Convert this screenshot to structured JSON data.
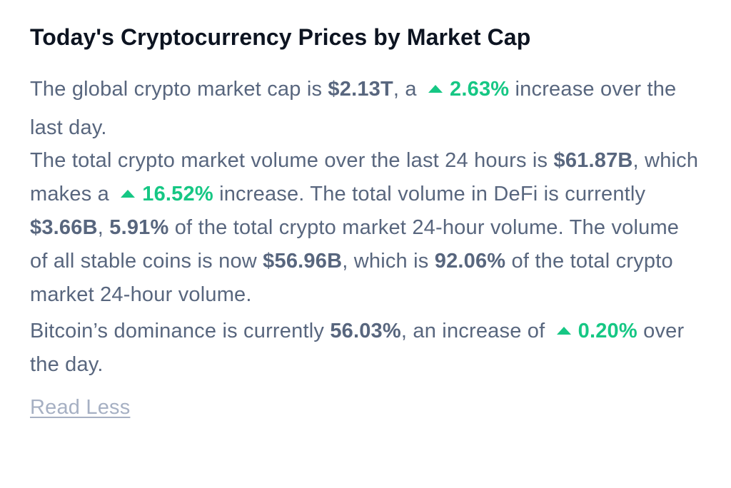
{
  "title": "Today's Cryptocurrency Prices by Market Cap",
  "p1": {
    "t1": "The global crypto market cap is ",
    "cap": "$2.13T",
    "t2": ", a",
    "change": "2.63%",
    "t3": " increase over the last day."
  },
  "p2": {
    "t1": "The total crypto market volume over the last 24 hours is ",
    "volume": "$61.87B",
    "t2": ", which makes a",
    "volume_change": "16.52%",
    "t3": " increase. The total volume in DeFi is currently ",
    "defi_volume": "$3.66B",
    "t4": ", ",
    "defi_share": "5.91%",
    "t5": " of the total crypto market 24-hour volume. The volume of all stable coins is now ",
    "stable_volume": "$56.96B",
    "t6": ", which is ",
    "stable_share": "92.06%",
    "t7": " of the total crypto market 24-hour volume."
  },
  "p3": {
    "t1": "Bitcoin’s dominance is currently ",
    "dominance": "56.03%",
    "t2": ", an increase of",
    "dominance_change": "0.20%",
    "t3": " over the day."
  },
  "read_less": "Read Less",
  "colors": {
    "heading": "#0d1421",
    "text": "#58667e",
    "increase": "#16c784",
    "link": "#a6b0c3"
  },
  "icons": {
    "increase": "caret-up-icon"
  }
}
